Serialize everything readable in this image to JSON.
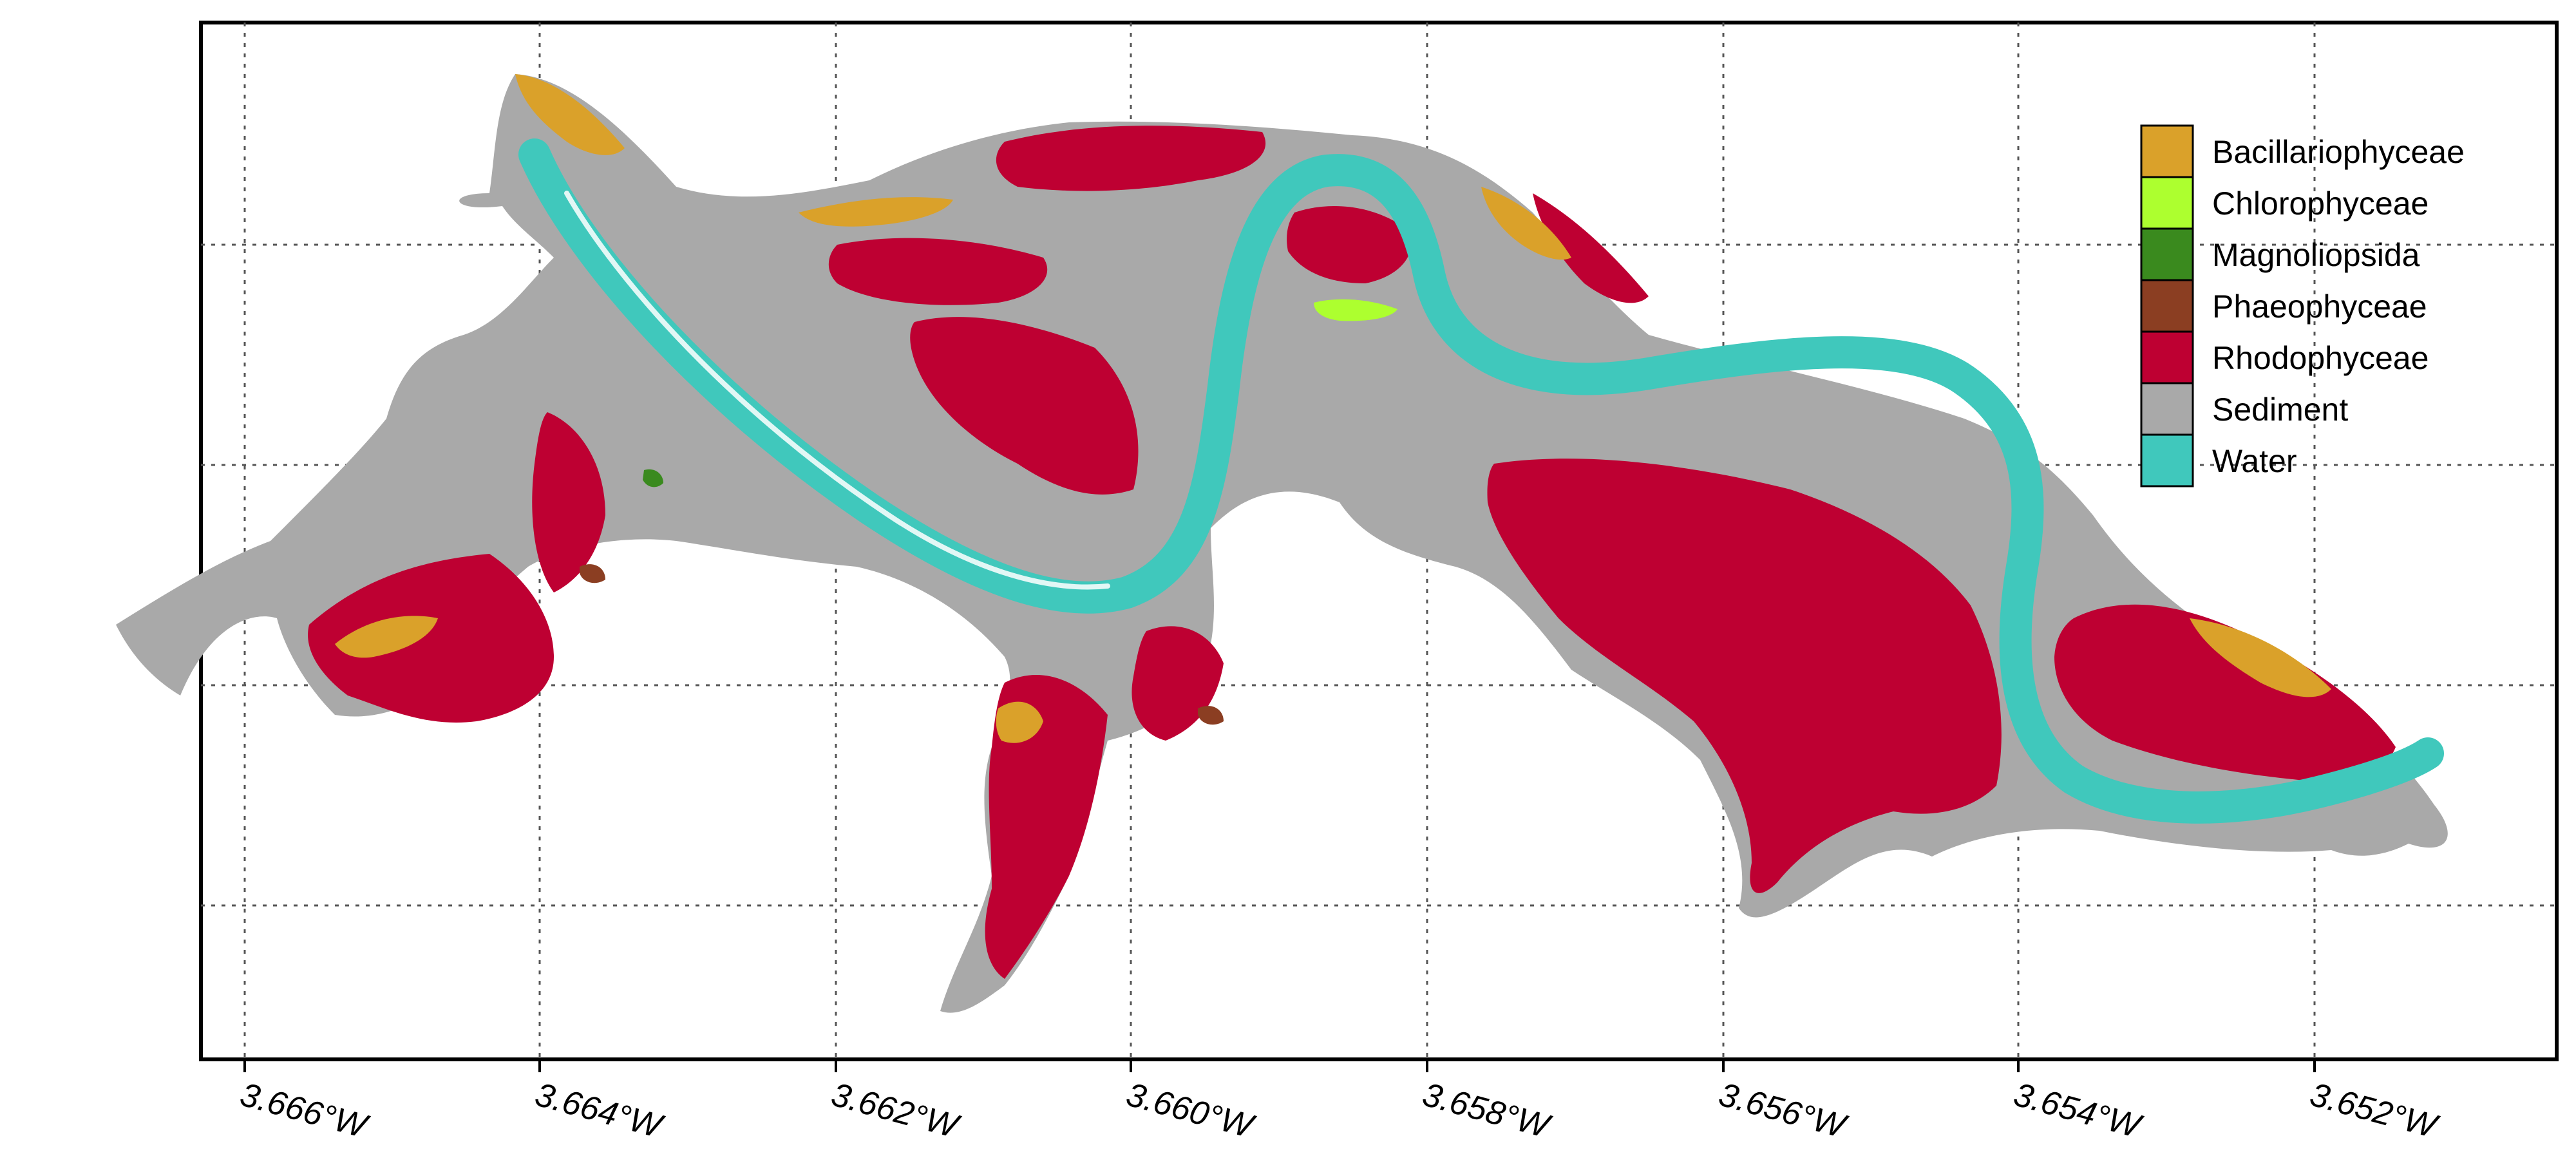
{
  "map": {
    "x_ticks": [
      "3.666°W",
      "3.664°W",
      "3.662°W",
      "3.660°W",
      "3.658°W",
      "3.656°W",
      "3.654°W",
      "3.652°W"
    ],
    "gridlines": true,
    "legend_position": "top-right"
  },
  "legend": {
    "items": [
      {
        "label": "Bacillariophyceae",
        "color": "#DAA12A"
      },
      {
        "label": "Chlorophyceae",
        "color": "#ADFF2F"
      },
      {
        "label": "Magnoliopsida",
        "color": "#3A8A1E"
      },
      {
        "label": "Phaeophyceae",
        "color": "#8B3E22"
      },
      {
        "label": "Rhodophyceae",
        "color": "#BE0032"
      },
      {
        "label": "Sediment",
        "color": "#A9A9A9"
      },
      {
        "label": "Water",
        "color": "#40C8BC"
      }
    ]
  },
  "colors": {
    "frame": "#000000",
    "grid": "#555555",
    "background": "#ffffff"
  }
}
